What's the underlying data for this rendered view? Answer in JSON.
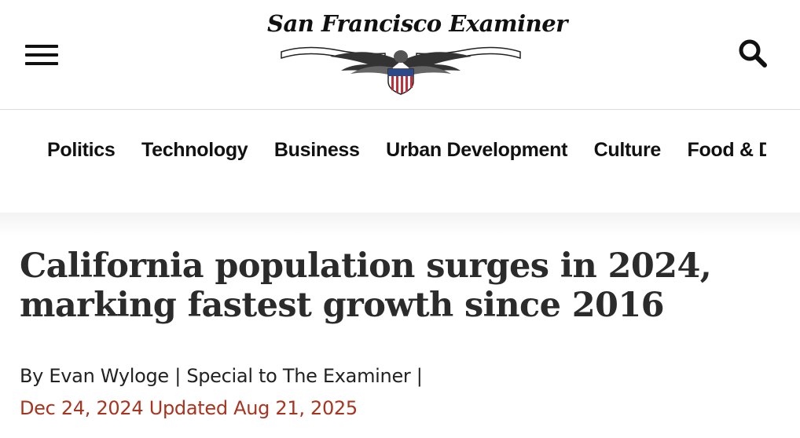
{
  "header": {
    "logo_text": "San Francisco Examiner",
    "menu_icon": "hamburger-menu-icon",
    "search_icon": "search-icon"
  },
  "nav": {
    "items": [
      "Politics",
      "Technology",
      "Business",
      "Urban Development",
      "Culture",
      "Food & Drink"
    ]
  },
  "article": {
    "headline": "California population surges in 2024, marking fastest growth since 2016",
    "byline": "By Evan Wyloge | Special to The Examiner |",
    "date": "Dec 24, 2024",
    "updated": "Updated Aug 21, 2025"
  },
  "colors": {
    "text": "#222222",
    "date_accent": "#a8341f",
    "divider": "#dcdcdc"
  }
}
